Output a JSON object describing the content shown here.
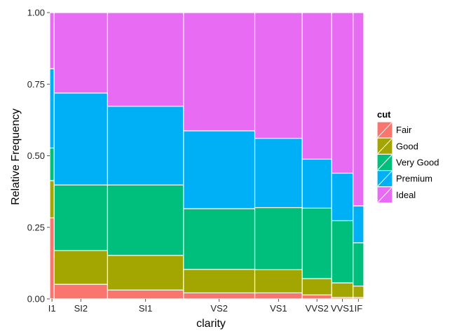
{
  "chart_data": {
    "type": "mosaic",
    "title": "",
    "xlabel": "clarity",
    "ylabel": "Relative Frequency",
    "ylim": [
      0,
      1
    ],
    "yticks": [
      "0.00",
      "0.25",
      "0.50",
      "0.75",
      "1.00"
    ],
    "legend_title": "cut",
    "legend_position": "right",
    "series": [
      {
        "name": "Fair",
        "color": "#F8766D"
      },
      {
        "name": "Good",
        "color": "#A3A500"
      },
      {
        "name": "Very Good",
        "color": "#00BF7D"
      },
      {
        "name": "Premium",
        "color": "#00B0F6"
      },
      {
        "name": "Ideal",
        "color": "#E76BF3"
      }
    ],
    "categories": [
      {
        "label": "I1",
        "width": 0.014,
        "fractions": [
          0.283,
          0.13,
          0.114,
          0.277,
          0.196
        ]
      },
      {
        "label": "SI2",
        "width": 0.17,
        "fractions": [
          0.051,
          0.118,
          0.229,
          0.321,
          0.281
        ]
      },
      {
        "label": "SI1",
        "width": 0.242,
        "fractions": [
          0.031,
          0.121,
          0.246,
          0.275,
          0.327
        ]
      },
      {
        "label": "VS2",
        "width": 0.227,
        "fractions": [
          0.021,
          0.082,
          0.212,
          0.272,
          0.413
        ]
      },
      {
        "label": "VS1",
        "width": 0.151,
        "fractions": [
          0.021,
          0.081,
          0.217,
          0.242,
          0.439
        ]
      },
      {
        "label": "VVS2",
        "width": 0.094,
        "fractions": [
          0.014,
          0.057,
          0.246,
          0.171,
          0.512
        ]
      },
      {
        "label": "VVS1",
        "width": 0.068,
        "fractions": [
          0.005,
          0.051,
          0.217,
          0.166,
          0.561
        ]
      },
      {
        "label": "IF",
        "width": 0.034,
        "fractions": [
          0.005,
          0.04,
          0.151,
          0.129,
          0.675
        ]
      }
    ]
  }
}
